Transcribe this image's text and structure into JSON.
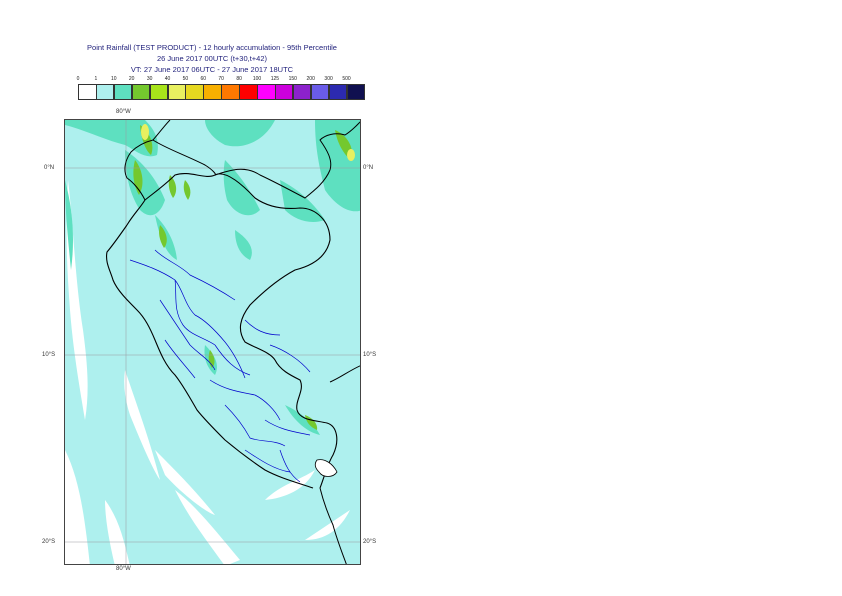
{
  "title": {
    "line1": "Point Rainfall (TEST PRODUCT) - 12 hourly accumulation - 95th Percentile",
    "line2": "26 June 2017 00UTC (t+30,t+42)",
    "line3": "VT: 27 June 2017 06UTC - 27 June 2017 18UTC"
  },
  "legend": {
    "labels": [
      "0",
      "1",
      "10",
      "20",
      "30",
      "40",
      "50",
      "60",
      "70",
      "80",
      "100",
      "125",
      "150",
      "200",
      "300",
      "500"
    ],
    "colors": [
      "#ffffff",
      "#aef0ee",
      "#5ee0c0",
      "#74c82e",
      "#a8e41a",
      "#e8f060",
      "#e6d820",
      "#f8b000",
      "#ff7800",
      "#ff0000",
      "#ff00ff",
      "#cc00dd",
      "#8c22cc",
      "#6a5ce8",
      "#2c2ab0",
      "#101050"
    ]
  },
  "axes": {
    "lon_top": "80°W",
    "lon_bottom": "80°W",
    "lat_left": [
      "0°N",
      "10°S",
      "20°S"
    ],
    "lat_right": [
      "0°N",
      "10°S",
      "20°S"
    ]
  },
  "map": {
    "background_color": "#aef0ee",
    "ocean_low_color": "#ffffff",
    "moderate_color": "#5ee0c0",
    "heavy_color": "#74c82e",
    "very_heavy_color": "#e8f060",
    "coast_color": "#000000",
    "border_color": "#0000cc",
    "grid_color": "#9a9aa0"
  }
}
